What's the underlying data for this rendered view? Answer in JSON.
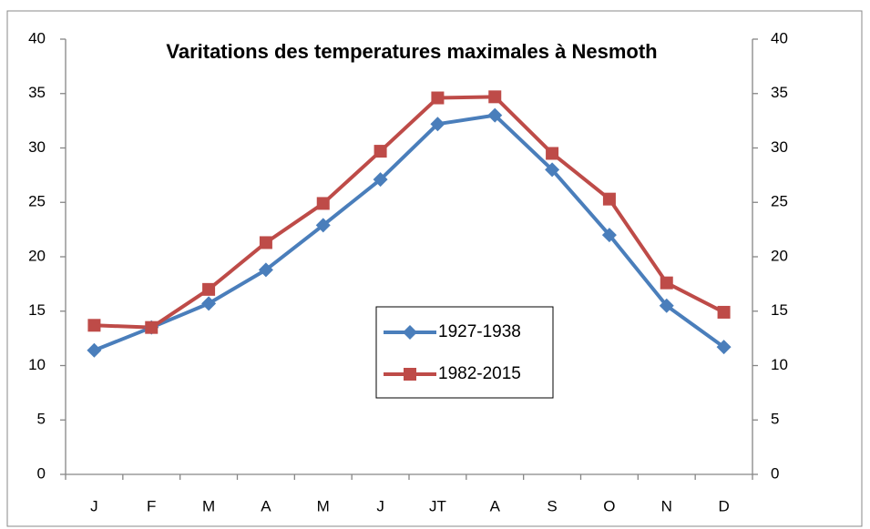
{
  "chart_data": {
    "type": "line",
    "title": "Varitations des temperatures maximales à Nesmoth",
    "categories": [
      "J",
      "F",
      "M",
      "A",
      "M",
      "J",
      "JT",
      "A",
      "S",
      "O",
      "N",
      "D"
    ],
    "series": [
      {
        "name": "1927-1938",
        "color": "#4a7ebb",
        "marker": "diamond",
        "values": [
          11.4,
          13.5,
          15.7,
          18.8,
          22.9,
          27.1,
          32.2,
          33.0,
          28.0,
          22.0,
          15.5,
          11.7
        ]
      },
      {
        "name": "1982-2015",
        "color": "#be4b48",
        "marker": "square",
        "values": [
          13.7,
          13.5,
          17.0,
          21.3,
          24.9,
          29.7,
          34.6,
          34.7,
          29.5,
          25.3,
          17.6,
          14.9
        ]
      }
    ],
    "ylim": [
      0,
      40
    ],
    "yticks": [
      0,
      5,
      10,
      15,
      20,
      25,
      30,
      35,
      40
    ],
    "y2lim": [
      0,
      40
    ],
    "y2ticks": [
      0,
      5,
      10,
      15,
      20,
      25,
      30,
      35,
      40
    ],
    "grid": false
  }
}
